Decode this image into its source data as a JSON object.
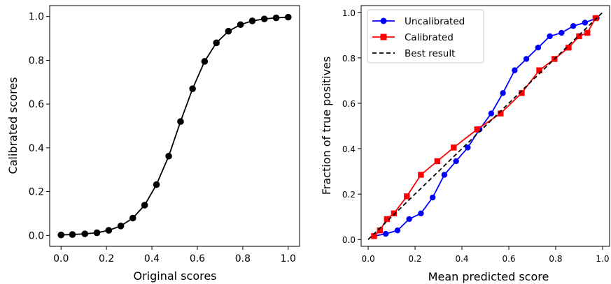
{
  "chart_data": [
    {
      "type": "line",
      "xlabel": "Original scores",
      "ylabel": "Calibrated scores",
      "xlim": [
        -0.05,
        1.05
      ],
      "ylim": [
        -0.05,
        1.05
      ],
      "xticks": [
        "0.0",
        "0.2",
        "0.4",
        "0.6",
        "0.8",
        "1.0"
      ],
      "yticks": [
        "0.0",
        "0.2",
        "0.4",
        "0.6",
        "0.8",
        "1.0"
      ],
      "grid": false,
      "series": [
        {
          "color": "#000000",
          "marker": "circle",
          "x": [
            0.0,
            0.05,
            0.105,
            0.158,
            0.21,
            0.263,
            0.316,
            0.368,
            0.42,
            0.474,
            0.526,
            0.579,
            0.632,
            0.684,
            0.737,
            0.79,
            0.842,
            0.895,
            0.947,
            1.0
          ],
          "y": [
            0.002,
            0.004,
            0.007,
            0.012,
            0.023,
            0.043,
            0.079,
            0.138,
            0.232,
            0.362,
            0.52,
            0.67,
            0.795,
            0.88,
            0.933,
            0.963,
            0.98,
            0.989,
            0.994,
            0.997
          ]
        }
      ]
    },
    {
      "type": "line",
      "xlabel": "Mean predicted score",
      "ylabel": "Fraction of true positives",
      "xlim": [
        -0.03,
        1.03
      ],
      "ylim": [
        -0.03,
        1.03
      ],
      "xticks": [
        "0.0",
        "0.2",
        "0.4",
        "0.6",
        "0.8",
        "1.0"
      ],
      "yticks": [
        "0.0",
        "0.2",
        "0.4",
        "0.6",
        "0.8",
        "1.0"
      ],
      "grid": false,
      "legend_position": "top-left",
      "series": [
        {
          "name": "Uncalibrated",
          "color": "#0000ff",
          "marker": "circle",
          "x": [
            0.025,
            0.075,
            0.125,
            0.175,
            0.225,
            0.275,
            0.325,
            0.375,
            0.425,
            0.475,
            0.525,
            0.575,
            0.625,
            0.675,
            0.725,
            0.775,
            0.825,
            0.875,
            0.925,
            0.975
          ],
          "y": [
            0.015,
            0.025,
            0.04,
            0.09,
            0.115,
            0.185,
            0.285,
            0.345,
            0.405,
            0.485,
            0.555,
            0.645,
            0.745,
            0.795,
            0.845,
            0.895,
            0.91,
            0.94,
            0.955,
            0.975
          ]
        },
        {
          "name": "Calibrated",
          "color": "#ff0000",
          "marker": "square",
          "x": [
            0.025,
            0.05,
            0.08,
            0.11,
            0.165,
            0.225,
            0.295,
            0.365,
            0.465,
            0.565,
            0.655,
            0.73,
            0.795,
            0.855,
            0.9,
            0.935,
            0.97
          ],
          "y": [
            0.015,
            0.04,
            0.09,
            0.115,
            0.19,
            0.285,
            0.345,
            0.405,
            0.485,
            0.555,
            0.645,
            0.745,
            0.795,
            0.845,
            0.895,
            0.91,
            0.975
          ]
        },
        {
          "name": "Best result",
          "color": "#000000",
          "style": "dashed",
          "x": [
            0.0,
            1.0
          ],
          "y": [
            0.0,
            1.0
          ]
        }
      ]
    }
  ]
}
